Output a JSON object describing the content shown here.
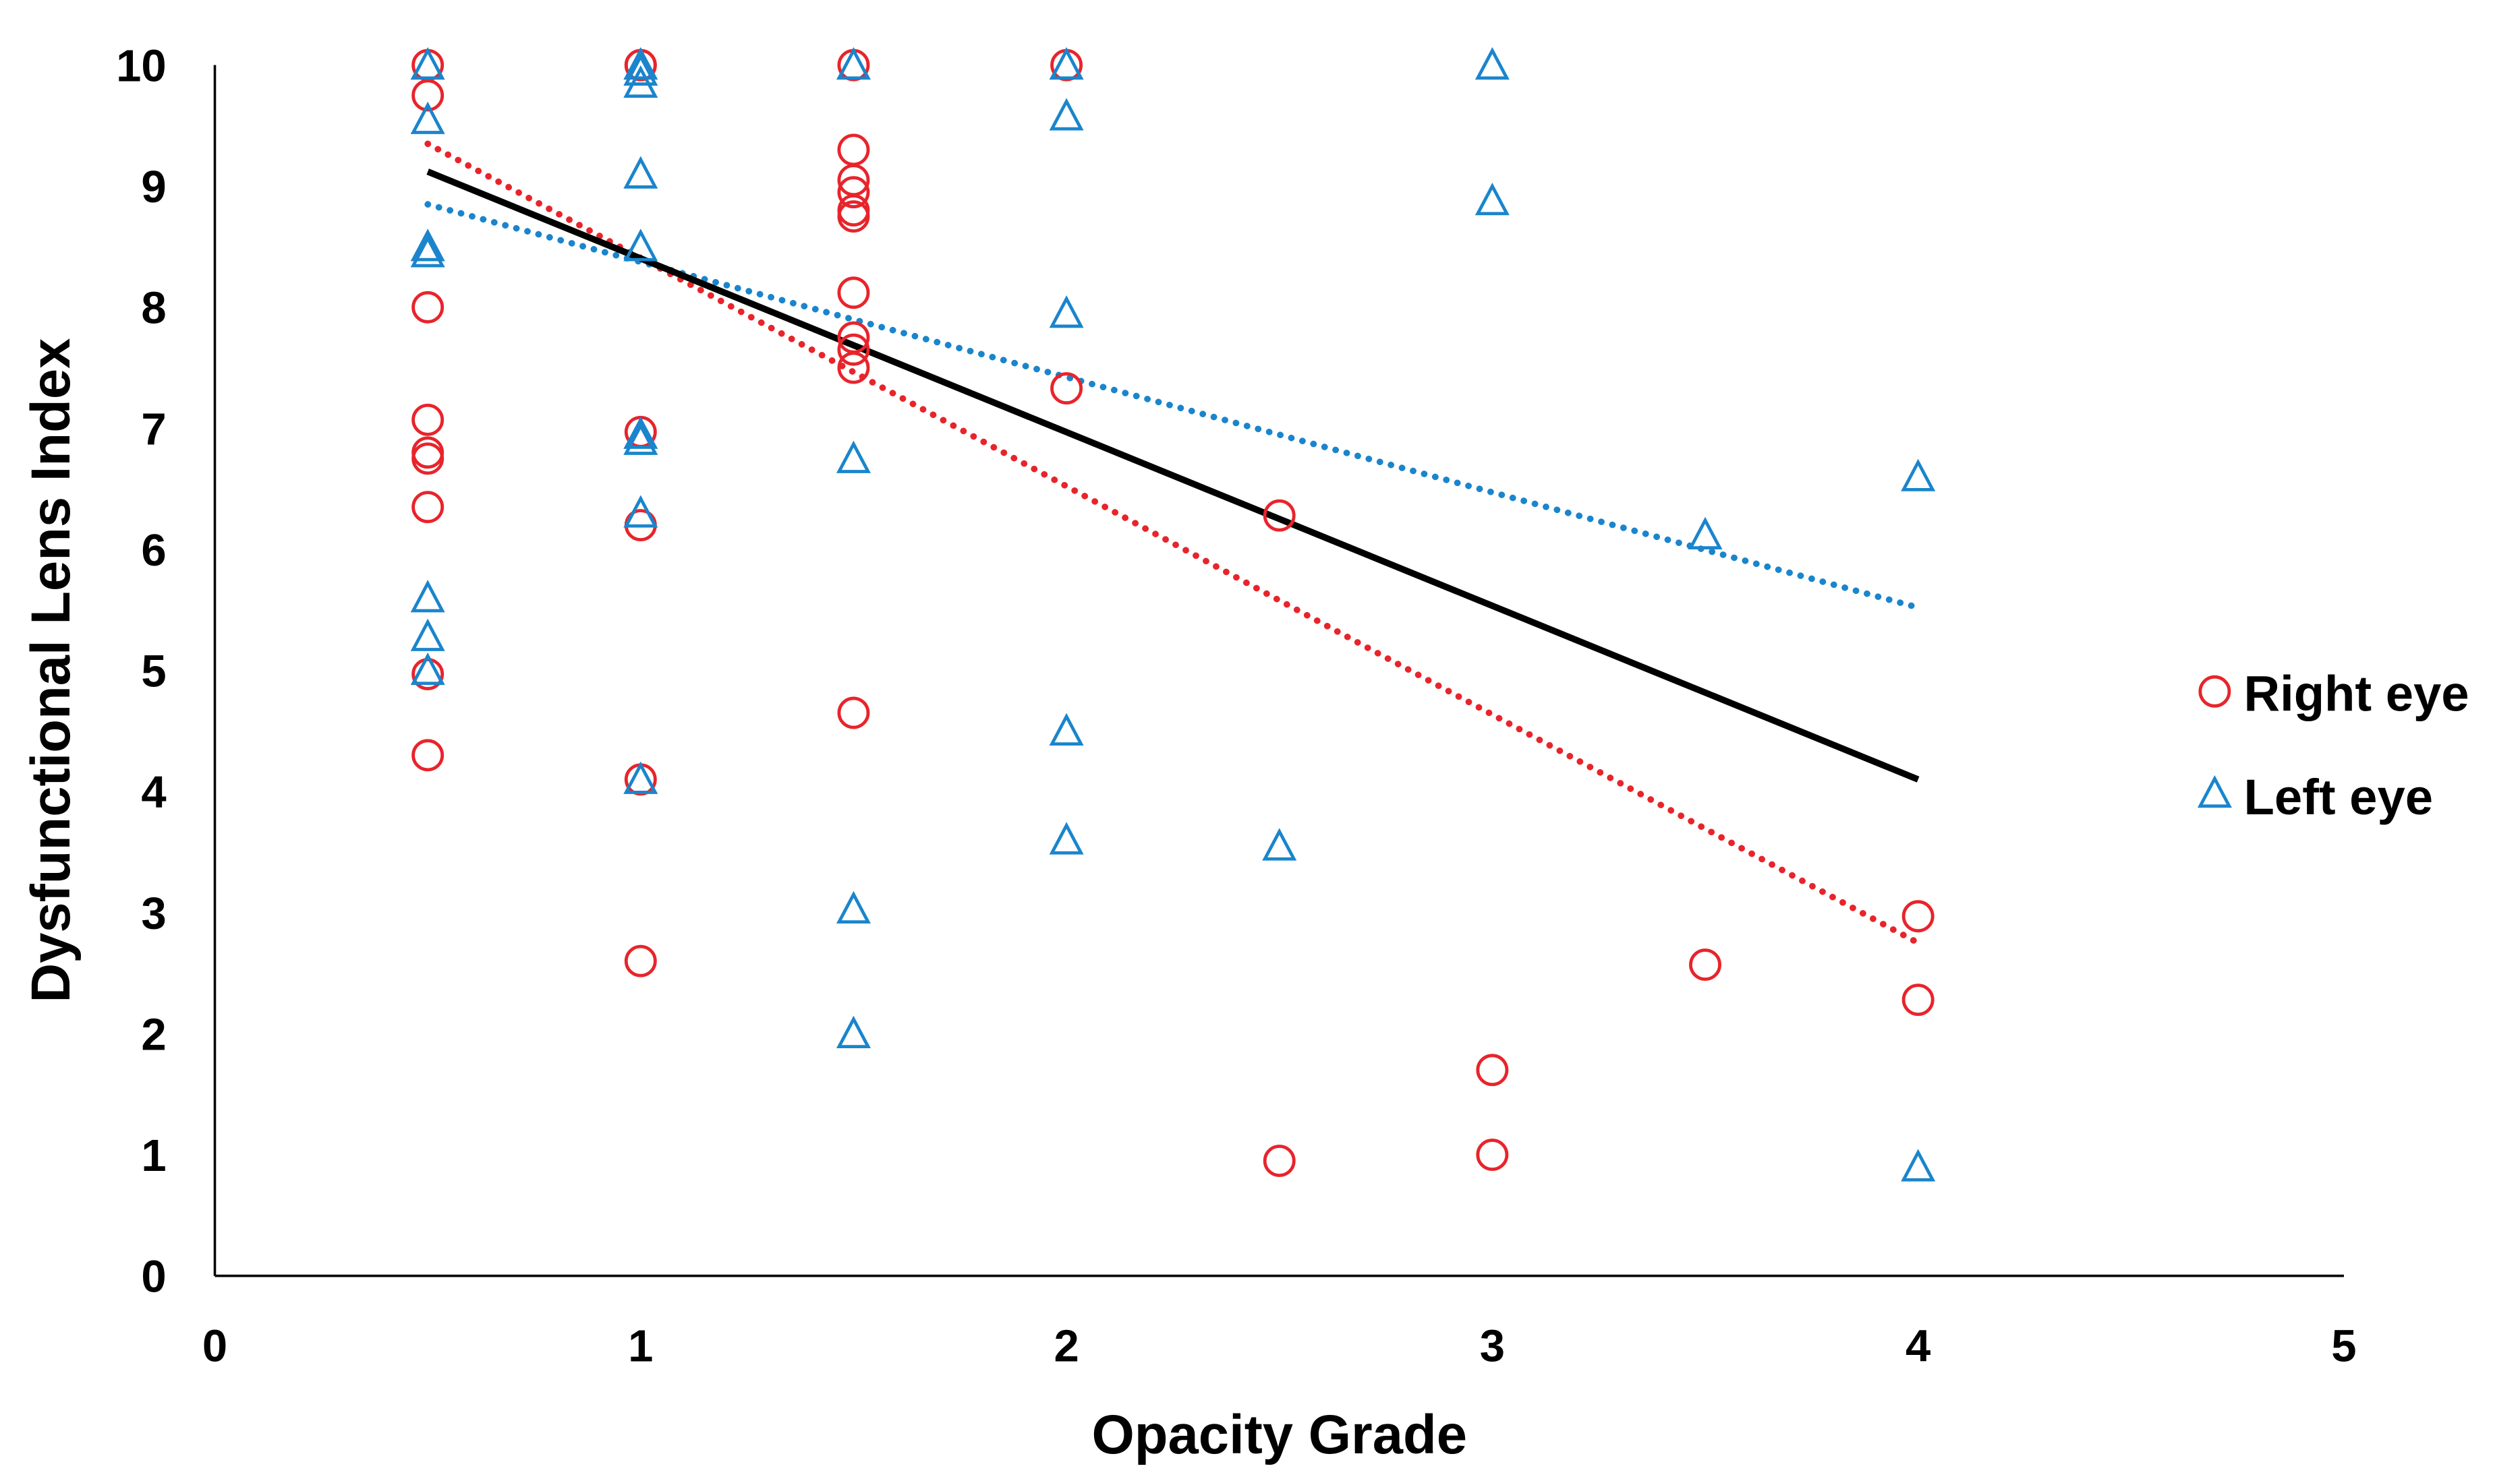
{
  "chart_data": {
    "type": "scatter",
    "title": "",
    "xlabel": "Opacity Grade",
    "ylabel": "Dysfunctional Lens Index",
    "xlim": [
      0,
      5
    ],
    "ylim": [
      0,
      10
    ],
    "xticks": [
      "0",
      "1",
      "2",
      "3",
      "4",
      "5"
    ],
    "yticks": [
      "0",
      "1",
      "2",
      "3",
      "4",
      "5",
      "6",
      "7",
      "8",
      "9",
      "10"
    ],
    "grid": false,
    "legend_position": "right",
    "series": [
      {
        "name": "Right eye",
        "marker": "circle",
        "color": "#e8242b",
        "points": [
          [
            0.5,
            10
          ],
          [
            0.5,
            9.75
          ],
          [
            0.5,
            8.0
          ],
          [
            0.5,
            7.07
          ],
          [
            0.5,
            6.8
          ],
          [
            0.5,
            6.75
          ],
          [
            0.5,
            6.35
          ],
          [
            0.5,
            4.97
          ],
          [
            0.5,
            4.3
          ],
          [
            1,
            10
          ],
          [
            1,
            10
          ],
          [
            1,
            6.97
          ],
          [
            1,
            6.2
          ],
          [
            1,
            4.1
          ],
          [
            1,
            2.6
          ],
          [
            1.5,
            10
          ],
          [
            1.5,
            9.3
          ],
          [
            1.5,
            9.05
          ],
          [
            1.5,
            8.95
          ],
          [
            1.5,
            8.8
          ],
          [
            1.5,
            8.75
          ],
          [
            1.5,
            8.12
          ],
          [
            1.5,
            7.75
          ],
          [
            1.5,
            7.65
          ],
          [
            1.5,
            7.5
          ],
          [
            1.5,
            4.65
          ],
          [
            2,
            10
          ],
          [
            2,
            7.33
          ],
          [
            2.5,
            6.28
          ],
          [
            2.5,
            0.95
          ],
          [
            3,
            1.7
          ],
          [
            3,
            1.0
          ],
          [
            3.5,
            2.57
          ],
          [
            4,
            2.97
          ],
          [
            4,
            2.28
          ]
        ],
        "trendline": {
          "style": "dotted",
          "from": [
            0.5,
            9.35
          ],
          "to": [
            4,
            2.75
          ]
        }
      },
      {
        "name": "Left eye",
        "marker": "triangle",
        "color": "#1a85cc",
        "points": [
          [
            0.5,
            10
          ],
          [
            0.5,
            9.55
          ],
          [
            0.5,
            8.5
          ],
          [
            0.5,
            8.45
          ],
          [
            0.5,
            5.6
          ],
          [
            0.5,
            5.28
          ],
          [
            0.5,
            5.0
          ],
          [
            1,
            10
          ],
          [
            1,
            9.95
          ],
          [
            1,
            9.85
          ],
          [
            1,
            9.1
          ],
          [
            1,
            8.5
          ],
          [
            1,
            6.95
          ],
          [
            1,
            6.9
          ],
          [
            1,
            6.3
          ],
          [
            1,
            4.1
          ],
          [
            1.5,
            10
          ],
          [
            1.5,
            6.75
          ],
          [
            1.5,
            3.03
          ],
          [
            1.5,
            2.0
          ],
          [
            2,
            10
          ],
          [
            2,
            9.58
          ],
          [
            2,
            7.95
          ],
          [
            2,
            4.5
          ],
          [
            2,
            3.6
          ],
          [
            2.5,
            3.55
          ],
          [
            3,
            10
          ],
          [
            3,
            8.88
          ],
          [
            3.5,
            6.12
          ],
          [
            4,
            6.6
          ],
          [
            4,
            0.9
          ]
        ],
        "trendline": {
          "style": "dotted",
          "from": [
            0.5,
            8.85
          ],
          "to": [
            4,
            5.52
          ]
        }
      }
    ],
    "overall_trendline": {
      "style": "solid",
      "color": "#000000",
      "from": [
        0.5,
        9.12
      ],
      "to": [
        4,
        4.1
      ]
    }
  }
}
